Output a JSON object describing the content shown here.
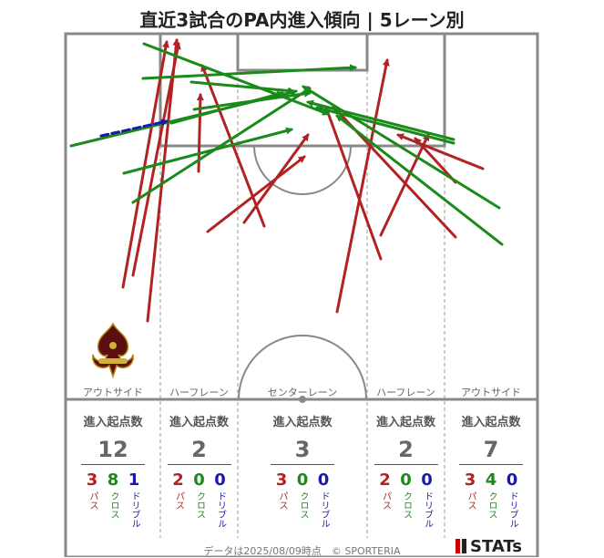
{
  "title": "直近3試合のPA内進入傾向 | 5レーン別",
  "lanes": [
    "アウトサイド",
    "ハーフレーン",
    "センターレーン",
    "ハーフレーン",
    "アウトサイド"
  ],
  "columns": [
    {
      "head": "進入起点数",
      "total": "12",
      "pass": "3",
      "cross": "8",
      "dribble": "1"
    },
    {
      "head": "進入起点数",
      "total": "2",
      "pass": "2",
      "cross": "0",
      "dribble": "0"
    },
    {
      "head": "進入起点数",
      "total": "3",
      "pass": "3",
      "cross": "0",
      "dribble": "0"
    },
    {
      "head": "進入起点数",
      "total": "2",
      "pass": "2",
      "cross": "0",
      "dribble": "0"
    },
    {
      "head": "進入起点数",
      "total": "7",
      "pass": "3",
      "cross": "4",
      "dribble": "0"
    }
  ],
  "labels": {
    "pass": "パス",
    "cross": "クロス",
    "dribble": "ドリブル"
  },
  "colors": {
    "pass": "#b22222",
    "cross": "#1a8a1a",
    "dribble": "#1a1aaa",
    "pitch_line": "#888888"
  },
  "footer": "データは2025/08/09時点　© SPORTERIA",
  "brand": "STATs",
  "logo_icon": "fleur-de-lis-crest-icon",
  "chart_data": {
    "type": "arrow-map",
    "series": [
      {
        "name": "パス",
        "arrows": [
          [
            135,
            315,
            183,
            46
          ],
          [
            146,
            302,
            196,
            48
          ],
          [
            162,
            352,
            194,
            44
          ],
          [
            218,
            188,
            220,
            104
          ],
          [
            290,
            248,
            222,
            72
          ],
          [
            228,
            254,
            334,
            172
          ],
          [
            268,
            244,
            338,
            148
          ],
          [
            370,
            342,
            425,
            66
          ],
          [
            418,
            284,
            358,
            118
          ],
          [
            418,
            258,
            470,
            148
          ],
          [
            500,
            260,
            366,
            117
          ],
          [
            530,
            185,
            437,
            148
          ],
          [
            500,
            200,
            456,
            152
          ]
        ]
      },
      {
        "name": "クロス",
        "arrows": [
          [
            78,
            160,
            325,
            100
          ],
          [
            146,
            222,
            340,
            97
          ],
          [
            157,
            86,
            390,
            74
          ],
          [
            210,
            90,
            322,
            100
          ],
          [
            158,
            48,
            360,
            125
          ],
          [
            213,
            120,
            340,
            102
          ],
          [
            188,
            135,
            310,
            102
          ],
          [
            136,
            190,
            320,
            142
          ],
          [
            498,
            153,
            338,
            112
          ],
          [
            498,
            157,
            348,
            118
          ],
          [
            548,
            228,
            333,
            95
          ],
          [
            551,
            268,
            370,
            127
          ]
        ]
      },
      {
        "name": "ドリブル",
        "arrows": [
          [
            111,
            149,
            183,
            133
          ]
        ]
      }
    ]
  }
}
